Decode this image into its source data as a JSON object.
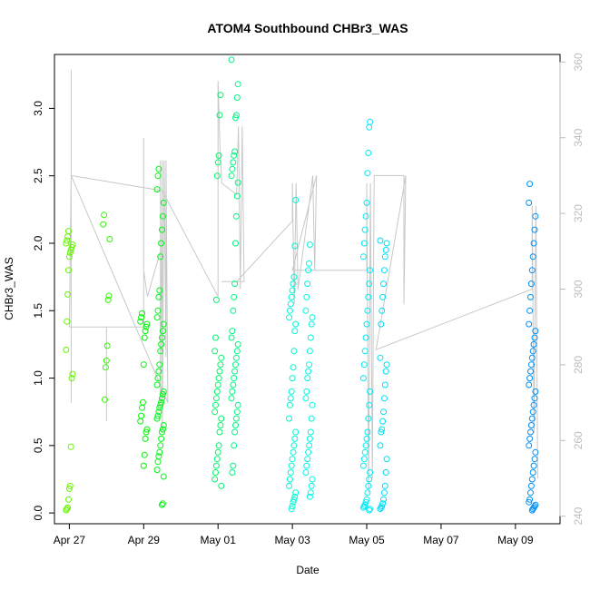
{
  "chart_data": {
    "type": "scatter",
    "title": "ATOM4 Southbound CHBr3_WAS",
    "xlabel": "Date",
    "ylabel": "CHBr3_WAS",
    "x_ticks": [
      "Apr 27",
      "Apr 29",
      "May 01",
      "May 03",
      "May 05",
      "May 07",
      "May 09"
    ],
    "y_ticks": [
      "0.0",
      "0.5",
      "1.0",
      "1.5",
      "2.0",
      "2.5",
      "3.0"
    ],
    "y_right_ticks": [
      "240",
      "260",
      "280",
      "300",
      "320",
      "340",
      "360"
    ],
    "x_range_days": [
      -0.4,
      13.2
    ],
    "ylim": [
      -0.08,
      3.4
    ],
    "y_right_lim": [
      238,
      362
    ],
    "colors": {
      "line": "#c8c8c8",
      "right_axis": "#bdbdbd"
    },
    "color_gradient_note": "point colors shift green to cyan to blue along time",
    "groups": [
      {
        "day": 0.0,
        "values": [
          0.02,
          0.03,
          0.04,
          0.1,
          0.18,
          0.2,
          0.49,
          1.0,
          1.03,
          1.21,
          1.42,
          1.62,
          1.8,
          1.9,
          1.93,
          1.95,
          1.97,
          1.99,
          2.0,
          2.02,
          2.05,
          2.09
        ]
      },
      {
        "day": 1.0,
        "values": [
          0.84,
          1.08,
          1.13,
          1.24,
          1.58,
          1.61,
          2.03,
          2.14,
          2.21
        ]
      },
      {
        "day": 2.0,
        "values": [
          0.35,
          0.43,
          0.55,
          0.6,
          0.62,
          0.68,
          0.72,
          0.78,
          0.82,
          1.1,
          1.3,
          1.35,
          1.38,
          1.4,
          1.42,
          1.45,
          1.48
        ]
      },
      {
        "day": 2.45,
        "values": [
          0.06,
          0.07,
          0.27,
          0.32,
          0.38,
          0.42,
          0.45,
          0.5,
          0.55,
          0.6,
          0.62,
          0.65,
          0.7,
          0.72,
          0.75,
          0.78,
          0.8,
          0.82,
          0.85,
          0.88,
          0.9,
          0.95,
          1.0,
          1.05,
          1.1,
          1.2,
          1.25,
          1.3,
          1.35,
          1.4,
          1.45,
          1.5,
          1.6,
          1.65,
          1.9,
          2.0,
          2.1,
          2.2,
          2.3,
          2.4,
          2.5,
          2.55
        ]
      },
      {
        "day": 4.0,
        "values": [
          0.2,
          0.25,
          0.3,
          0.35,
          0.4,
          0.45,
          0.5,
          0.6,
          0.65,
          0.7,
          0.75,
          0.8,
          0.85,
          0.9,
          0.95,
          1.0,
          1.05,
          1.1,
          1.15,
          1.2,
          1.3,
          1.58,
          2.5,
          2.6,
          2.65,
          2.95,
          3.1
        ]
      },
      {
        "day": 4.45,
        "values": [
          0.3,
          0.35,
          0.5,
          0.6,
          0.65,
          0.7,
          0.75,
          0.8,
          0.85,
          0.9,
          0.95,
          1.0,
          1.05,
          1.1,
          1.15,
          1.2,
          1.25,
          1.3,
          1.35,
          1.5,
          1.6,
          1.7,
          2.0,
          2.2,
          2.35,
          2.45,
          2.5,
          2.55,
          2.6,
          2.65,
          2.68,
          2.93,
          2.95,
          3.08,
          3.18,
          3.36
        ]
      },
      {
        "day": 6.0,
        "values": [
          0.03,
          0.05,
          0.08,
          0.1,
          0.12,
          0.15,
          0.2,
          0.25,
          0.3,
          0.35,
          0.4,
          0.45,
          0.5,
          0.55,
          0.6,
          0.7,
          0.8,
          0.85,
          0.9,
          1.0,
          1.08,
          1.2,
          1.35,
          1.4,
          1.45,
          1.5,
          1.55,
          1.6,
          1.65,
          1.7,
          1.75,
          1.98,
          2.32
        ]
      },
      {
        "day": 6.45,
        "values": [
          0.12,
          0.15,
          0.2,
          0.25,
          0.3,
          0.35,
          0.4,
          0.45,
          0.5,
          0.55,
          0.6,
          0.7,
          0.8,
          0.85,
          0.9,
          1.0,
          1.05,
          1.1,
          1.2,
          1.3,
          1.4,
          1.45,
          1.5,
          1.6,
          1.7,
          1.8,
          1.85,
          1.99
        ]
      },
      {
        "day": 8.0,
        "values": [
          0.02,
          0.03,
          0.04,
          0.05,
          0.06,
          0.08,
          0.1,
          0.15,
          0.2,
          0.25,
          0.3,
          0.35,
          0.4,
          0.45,
          0.5,
          0.55,
          0.6,
          0.7,
          0.8,
          0.9,
          1.0,
          1.1,
          1.2,
          1.3,
          1.4,
          1.5,
          1.6,
          1.7,
          1.8,
          1.9,
          2.0,
          2.1,
          2.2,
          2.3,
          2.52,
          2.67,
          2.86,
          2.9
        ]
      },
      {
        "day": 8.45,
        "values": [
          0.03,
          0.04,
          0.05,
          0.07,
          0.1,
          0.15,
          0.2,
          0.3,
          0.4,
          0.5,
          0.6,
          0.62,
          0.68,
          0.75,
          0.85,
          0.95,
          1.05,
          1.1,
          1.15,
          1.4,
          1.5,
          1.6,
          1.7,
          1.8,
          1.9,
          1.95,
          2.0,
          2.02
        ]
      },
      {
        "day": 9.0,
        "values": []
      },
      {
        "day": 12.45,
        "values": [
          0.02,
          0.03,
          0.04,
          0.05,
          0.06,
          0.08,
          0.1,
          0.15,
          0.2,
          0.25,
          0.3,
          0.35,
          0.4,
          0.45,
          0.5,
          0.55,
          0.6,
          0.65,
          0.7,
          0.75,
          0.8,
          0.85,
          0.9,
          0.95,
          1.0,
          1.05,
          1.1,
          1.15,
          1.2,
          1.25,
          1.3,
          1.35,
          1.4,
          1.5,
          1.6,
          1.7,
          1.8,
          1.9,
          2.0,
          2.1,
          2.2,
          2.3,
          2.44
        ]
      }
    ],
    "line_path": [
      {
        "day": 0.05,
        "right": 330
      },
      {
        "day": 0.05,
        "right": 358
      },
      {
        "day": 0.05,
        "right": 270
      },
      {
        "day": 0.05,
        "right": 330
      },
      {
        "day": 0.0,
        "right": 290
      },
      {
        "day": 1.0,
        "right": 290
      },
      {
        "day": 1.0,
        "right": 265
      },
      {
        "day": 1.0,
        "right": 290
      },
      {
        "day": 2.0,
        "right": 290
      },
      {
        "day": 2.0,
        "right": 340
      },
      {
        "day": 2.0,
        "right": 305
      },
      {
        "day": 2.1,
        "right": 298
      },
      {
        "day": 2.45,
        "right": 310
      },
      {
        "day": 2.45,
        "right": 334
      },
      {
        "day": 2.45,
        "right": 268
      },
      {
        "day": 2.5,
        "right": 334
      },
      {
        "day": 2.5,
        "right": 262
      },
      {
        "day": 2.55,
        "right": 334
      },
      {
        "day": 2.6,
        "right": 282
      },
      {
        "day": 2.6,
        "right": 334
      },
      {
        "day": 2.65,
        "right": 270
      },
      {
        "day": 0.05,
        "right": 330
      },
      {
        "day": 2.5,
        "right": 326
      },
      {
        "day": 4.0,
        "right": 298
      },
      {
        "day": 4.0,
        "right": 355
      },
      {
        "day": 4.05,
        "right": 338
      },
      {
        "day": 4.1,
        "right": 328
      },
      {
        "day": 4.5,
        "right": 325
      },
      {
        "day": 4.55,
        "right": 343
      },
      {
        "day": 4.6,
        "right": 300
      },
      {
        "day": 4.65,
        "right": 343
      },
      {
        "day": 4.7,
        "right": 302
      },
      {
        "day": 4.1,
        "right": 302
      },
      {
        "day": 4.5,
        "right": 302
      },
      {
        "day": 6.0,
        "right": 318
      },
      {
        "day": 6.0,
        "right": 328
      },
      {
        "day": 6.05,
        "right": 296
      },
      {
        "day": 6.1,
        "right": 328
      },
      {
        "day": 6.15,
        "right": 300
      },
      {
        "day": 6.5,
        "right": 326
      },
      {
        "day": 6.55,
        "right": 330
      },
      {
        "day": 6.6,
        "right": 305
      },
      {
        "day": 6.65,
        "right": 330
      },
      {
        "day": 6.0,
        "right": 305
      },
      {
        "day": 8.0,
        "right": 305
      },
      {
        "day": 8.0,
        "right": 328
      },
      {
        "day": 8.05,
        "right": 246
      },
      {
        "day": 8.1,
        "right": 328
      },
      {
        "day": 8.15,
        "right": 250
      },
      {
        "day": 8.2,
        "right": 330
      },
      {
        "day": 9.0,
        "right": 330
      },
      {
        "day": 9.0,
        "right": 296
      },
      {
        "day": 9.05,
        "right": 330
      },
      {
        "day": 8.25,
        "right": 284
      },
      {
        "day": 12.45,
        "right": 300
      },
      {
        "day": 12.45,
        "right": 322
      },
      {
        "day": 12.5,
        "right": 262
      },
      {
        "day": 12.55,
        "right": 322
      },
      {
        "day": 12.6,
        "right": 250
      }
    ]
  }
}
